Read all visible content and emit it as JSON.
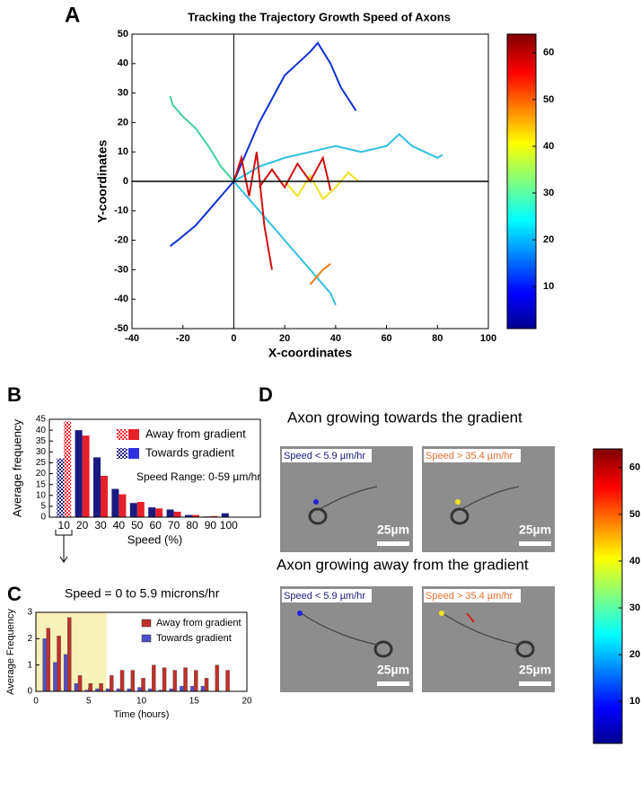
{
  "panel_labels": [
    "A",
    "B",
    "C",
    "D"
  ],
  "chart_data": [
    {
      "type": "line",
      "title": "Tracking the Trajectory Growth Speed of Axons",
      "x_label": "X-coordinates",
      "y_label": "Y-coordinates",
      "xlim": [
        -40,
        100
      ],
      "xticks": [
        -40,
        -20,
        0,
        20,
        40,
        60,
        80,
        100
      ],
      "ylim": [
        -50,
        50
      ],
      "yticks": [
        -50,
        -40,
        -30,
        -20,
        -10,
        0,
        10,
        20,
        30,
        40,
        50
      ],
      "zero_lines": true,
      "series": [
        {
          "color": "#1030d0",
          "x": [
            0,
            5,
            10,
            15,
            20,
            25,
            30,
            33,
            38,
            42,
            48
          ],
          "values": [
            0,
            10,
            20,
            28,
            36,
            40,
            44,
            47,
            40,
            32,
            24
          ]
        },
        {
          "color": "#30c0e0",
          "x": [
            0,
            10,
            20,
            30,
            40,
            50,
            60,
            65,
            70,
            75,
            80,
            82
          ],
          "values": [
            0,
            5,
            8,
            10,
            12,
            10,
            12,
            16,
            12,
            10,
            8,
            9
          ]
        },
        {
          "color": "#40d0a0",
          "x": [
            0,
            -5,
            -10,
            -15,
            -20,
            -24,
            -25
          ],
          "values": [
            0,
            5,
            12,
            18,
            22,
            26,
            29
          ]
        },
        {
          "color": "#1030d0",
          "x": [
            0,
            -5,
            -10,
            -15,
            -22,
            -25
          ],
          "values": [
            0,
            -5,
            -10,
            -15,
            -20,
            -22
          ]
        },
        {
          "color": "#30c0e0",
          "x": [
            0,
            10,
            20,
            30,
            35,
            38,
            40
          ],
          "values": [
            0,
            -10,
            -20,
            -30,
            -35,
            -38,
            -42
          ]
        },
        {
          "color": "#f0e020",
          "x": [
            20,
            25,
            30,
            35,
            40,
            45,
            49
          ],
          "values": [
            0,
            -5,
            2,
            -6,
            -2,
            3,
            0
          ]
        },
        {
          "color": "#d01010",
          "x": [
            0,
            3,
            6,
            9,
            12,
            15
          ],
          "values": [
            0,
            8,
            -5,
            10,
            -15,
            -30
          ]
        },
        {
          "color": "#d01010",
          "x": [
            10,
            15,
            20,
            25,
            30,
            35,
            38
          ],
          "values": [
            -2,
            4,
            -2,
            6,
            0,
            8,
            -3
          ]
        },
        {
          "color": "#f08020",
          "x": [
            30,
            35,
            38
          ],
          "values": [
            -35,
            -30,
            -28
          ]
        }
      ]
    },
    {
      "type": "colorbar",
      "colormap": "jet",
      "ylim": [
        1,
        64
      ],
      "yticks": [
        10,
        20,
        30,
        40,
        50,
        60
      ]
    },
    {
      "type": "bar",
      "x_label": "Speed (%)",
      "y_label": "Average frequency",
      "annotation": "Speed Range: 0-59 µm/hr",
      "legend": "upper right",
      "checker_first": true,
      "categories": [
        "10",
        "20",
        "30",
        "40",
        "50",
        "60",
        "70",
        "80",
        "90",
        "100"
      ],
      "ylim": [
        0,
        45
      ],
      "yticks": [
        0,
        5,
        10,
        15,
        20,
        25,
        30,
        35,
        40,
        45
      ],
      "series": [
        {
          "name": "Away from gradient",
          "color": "#e8202a",
          "values": [
            44,
            37.5,
            19,
            10.5,
            7,
            4,
            2.5,
            1,
            0.5,
            0.2
          ]
        },
        {
          "name": "Towards gradient",
          "color": "#1a1a80",
          "values": [
            27,
            40,
            27.5,
            13,
            6.5,
            4.5,
            3.5,
            1,
            0.3,
            1.8
          ]
        }
      ]
    },
    {
      "type": "bar",
      "title": "Speed = 0 to 5.9 microns/hr",
      "x_label": "Time (hours)",
      "y_label": "Average Frequency",
      "legend": "upper right",
      "highlight_x": [
        0,
        6.7
      ],
      "x": [
        1,
        2,
        3,
        4,
        5,
        6,
        7,
        8,
        9,
        10,
        11,
        12,
        13,
        14,
        15,
        16,
        17,
        18
      ],
      "xlim": [
        0,
        20
      ],
      "xticks": [
        0,
        5,
        10,
        15,
        20
      ],
      "ylim": [
        0,
        3
      ],
      "yticks": [
        0,
        1,
        2,
        3
      ],
      "series": [
        {
          "name": "Away from gradient",
          "color": "#c0302a",
          "values": [
            2.4,
            2.1,
            2.8,
            0.6,
            0.3,
            0.3,
            0.6,
            0.8,
            0.8,
            0.5,
            1.0,
            0.9,
            0.8,
            0.9,
            0.8,
            0.5,
            1.0,
            0.8
          ]
        },
        {
          "name": "Towards gradient",
          "color": "#5050c8",
          "values": [
            2.0,
            1.1,
            1.4,
            0.3,
            0.05,
            0.1,
            0.1,
            0.1,
            0.1,
            0.15,
            0.1,
            0.05,
            0.1,
            0.2,
            0.2,
            0.2,
            0,
            0
          ]
        }
      ]
    },
    {
      "type": "colorbar",
      "colormap": "jet",
      "ylim": [
        1,
        64
      ],
      "yticks": [
        10,
        20,
        30,
        40,
        50,
        60
      ]
    }
  ],
  "panel_d": {
    "top_title": "Axon growing towards the gradient",
    "bottom_title": "Axon growing away from the gradient",
    "images": [
      {
        "label": "Speed < 5.9 µm/hr",
        "scale_bar": "25µm"
      },
      {
        "label": "Speed > 35.4 µm/hr",
        "scale_bar": "25µm"
      },
      {
        "label": "Speed < 5.9 µm/hr",
        "scale_bar": "25µm"
      },
      {
        "label": "Speed > 35.4 µm/hr",
        "scale_bar": "25µm"
      }
    ]
  }
}
